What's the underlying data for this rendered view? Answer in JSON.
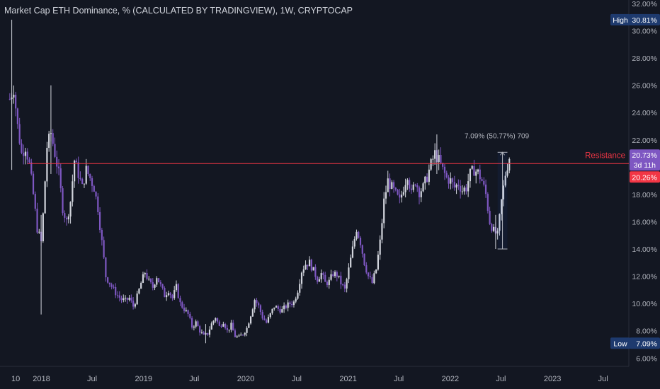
{
  "chart_data": {
    "type": "candlestick",
    "title": "Market Cap ETH Dominance, % (CALCULATED BY TRADINGVIEW), 1W, CRYPTOCAP",
    "y_unit": "%",
    "ylim": [
      5.6,
      32.1
    ],
    "y_ticks": [
      "32.00%",
      "30.00%",
      "28.00%",
      "26.00%",
      "24.00%",
      "22.00%",
      "20.00%",
      "18.00%",
      "16.00%",
      "14.00%",
      "12.00%",
      "10.00%",
      "8.00%",
      "6.00%"
    ],
    "y_tick_values": [
      32,
      30,
      28,
      26,
      24,
      22,
      20,
      18,
      16,
      14,
      12,
      10,
      8,
      6
    ],
    "x_ticks": [
      {
        "label": "10",
        "date": "2017-10-01"
      },
      {
        "label": "2018",
        "date": "2018-01-01"
      },
      {
        "label": "Jul",
        "date": "2018-07-01"
      },
      {
        "label": "2019",
        "date": "2019-01-01"
      },
      {
        "label": "Jul",
        "date": "2019-07-01"
      },
      {
        "label": "2020",
        "date": "2020-01-01"
      },
      {
        "label": "Jul",
        "date": "2020-07-01"
      },
      {
        "label": "2021",
        "date": "2021-01-01"
      },
      {
        "label": "Jul",
        "date": "2021-07-01"
      },
      {
        "label": "2022",
        "date": "2022-01-01"
      },
      {
        "label": "Jul",
        "date": "2022-07-01"
      },
      {
        "label": "2023",
        "date": "2023-01-01"
      },
      {
        "label": "Jul",
        "date": "2023-07-01"
      }
    ],
    "x_range": [
      "2017-08-06",
      "2023-10-01"
    ],
    "path": [
      [
        "2017-09-10",
        25.0
      ],
      [
        "2017-09-24",
        25.8
      ],
      [
        "2017-10-08",
        23.0
      ],
      [
        "2017-10-22",
        21.0
      ],
      [
        "2017-11-05",
        21.5
      ],
      [
        "2017-11-19",
        20.2
      ],
      [
        "2017-12-03",
        18.0
      ],
      [
        "2017-12-17",
        15.5
      ],
      [
        "2017-12-31",
        14.5
      ],
      [
        "2018-01-07",
        16.5
      ],
      [
        "2018-01-21",
        21.5
      ],
      [
        "2018-02-04",
        22.5
      ],
      [
        "2018-02-18",
        21.0
      ],
      [
        "2018-03-04",
        19.5
      ],
      [
        "2018-03-18",
        17.0
      ],
      [
        "2018-04-01",
        16.0
      ],
      [
        "2018-04-15",
        17.5
      ],
      [
        "2018-04-29",
        20.5
      ],
      [
        "2018-05-13",
        19.5
      ],
      [
        "2018-05-27",
        18.5
      ],
      [
        "2018-06-10",
        19.8
      ],
      [
        "2018-06-24",
        19.2
      ],
      [
        "2018-07-08",
        18.5
      ],
      [
        "2018-07-22",
        17.0
      ],
      [
        "2018-08-05",
        14.5
      ],
      [
        "2018-08-19",
        12.0
      ],
      [
        "2018-09-02",
        11.5
      ],
      [
        "2018-09-16",
        11.0
      ],
      [
        "2018-09-30",
        10.6
      ],
      [
        "2018-10-14",
        10.3
      ],
      [
        "2018-10-28",
        10.2
      ],
      [
        "2018-11-11",
        10.4
      ],
      [
        "2018-11-25",
        9.8
      ],
      [
        "2018-12-09",
        10.5
      ],
      [
        "2018-12-23",
        11.5
      ],
      [
        "2019-01-06",
        12.3
      ],
      [
        "2019-01-20",
        11.6
      ],
      [
        "2019-02-03",
        11.2
      ],
      [
        "2019-02-17",
        12.0
      ],
      [
        "2019-03-03",
        11.3
      ],
      [
        "2019-03-17",
        10.6
      ],
      [
        "2019-03-31",
        11.0
      ],
      [
        "2019-04-14",
        10.4
      ],
      [
        "2019-04-28",
        11.2
      ],
      [
        "2019-05-12",
        10.0
      ],
      [
        "2019-05-26",
        9.6
      ],
      [
        "2019-06-09",
        9.2
      ],
      [
        "2019-06-23",
        8.3
      ],
      [
        "2019-07-07",
        8.6
      ],
      [
        "2019-07-21",
        8.0
      ],
      [
        "2019-08-04",
        7.6
      ],
      [
        "2019-08-18",
        7.8
      ],
      [
        "2019-09-01",
        8.5
      ],
      [
        "2019-09-15",
        9.0
      ],
      [
        "2019-09-29",
        8.3
      ],
      [
        "2019-10-13",
        8.7
      ],
      [
        "2019-10-27",
        8.0
      ],
      [
        "2019-11-10",
        8.4
      ],
      [
        "2019-11-24",
        7.6
      ],
      [
        "2019-12-08",
        7.5
      ],
      [
        "2019-12-22",
        7.8
      ],
      [
        "2020-01-05",
        8.2
      ],
      [
        "2020-01-19",
        9.2
      ],
      [
        "2020-02-02",
        10.3
      ],
      [
        "2020-02-16",
        9.8
      ],
      [
        "2020-03-01",
        9.0
      ],
      [
        "2020-03-15",
        8.6
      ],
      [
        "2020-03-29",
        9.2
      ],
      [
        "2020-04-12",
        9.8
      ],
      [
        "2020-04-26",
        9.6
      ],
      [
        "2020-05-10",
        9.5
      ],
      [
        "2020-05-24",
        9.8
      ],
      [
        "2020-06-07",
        10.0
      ],
      [
        "2020-06-21",
        10.1
      ],
      [
        "2020-07-05",
        11.0
      ],
      [
        "2020-07-19",
        12.4
      ],
      [
        "2020-08-02",
        12.9
      ],
      [
        "2020-08-16",
        13.0
      ],
      [
        "2020-08-30",
        12.4
      ],
      [
        "2020-09-13",
        11.8
      ],
      [
        "2020-09-27",
        12.2
      ],
      [
        "2020-10-11",
        11.5
      ],
      [
        "2020-10-25",
        11.6
      ],
      [
        "2020-11-08",
        12.2
      ],
      [
        "2020-11-22",
        12.1
      ],
      [
        "2020-12-06",
        11.5
      ],
      [
        "2020-12-20",
        11.0
      ],
      [
        "2021-01-03",
        12.5
      ],
      [
        "2021-01-17",
        14.0
      ],
      [
        "2021-01-31",
        15.5
      ],
      [
        "2021-02-14",
        14.5
      ],
      [
        "2021-02-28",
        13.0
      ],
      [
        "2021-03-14",
        12.0
      ],
      [
        "2021-03-28",
        11.5
      ],
      [
        "2021-04-11",
        12.5
      ],
      [
        "2021-04-25",
        14.5
      ],
      [
        "2021-05-09",
        17.5
      ],
      [
        "2021-05-23",
        19.0
      ],
      [
        "2021-06-06",
        18.5
      ],
      [
        "2021-06-20",
        18.0
      ],
      [
        "2021-07-04",
        17.5
      ],
      [
        "2021-07-18",
        18.5
      ],
      [
        "2021-08-01",
        19.5
      ],
      [
        "2021-08-15",
        18.0
      ],
      [
        "2021-08-29",
        19.0
      ],
      [
        "2021-09-12",
        18.2
      ],
      [
        "2021-09-26",
        18.5
      ],
      [
        "2021-10-10",
        19.3
      ],
      [
        "2021-10-24",
        20.2
      ],
      [
        "2021-11-07",
        21.0
      ],
      [
        "2021-11-21",
        20.5
      ],
      [
        "2021-12-05",
        19.8
      ],
      [
        "2021-12-19",
        19.2
      ],
      [
        "2022-01-02",
        19.0
      ],
      [
        "2022-01-16",
        18.5
      ],
      [
        "2022-01-30",
        18.8
      ],
      [
        "2022-02-13",
        18.3
      ],
      [
        "2022-02-27",
        18.5
      ],
      [
        "2022-03-13",
        19.5
      ],
      [
        "2022-03-27",
        19.8
      ],
      [
        "2022-04-10",
        19.6
      ],
      [
        "2022-04-24",
        19.0
      ],
      [
        "2022-05-08",
        18.0
      ],
      [
        "2022-05-22",
        16.0
      ],
      [
        "2022-06-05",
        15.3
      ],
      [
        "2022-06-19",
        15.0
      ],
      [
        "2022-07-03",
        17.5
      ],
      [
        "2022-07-17",
        19.5
      ],
      [
        "2022-07-31",
        20.73
      ]
    ],
    "wicks": [
      [
        "2017-09-17",
        19.8,
        30.81
      ],
      [
        "2017-12-31",
        9.2,
        16.5
      ],
      [
        "2018-02-04",
        19.5,
        26.0
      ],
      [
        "2019-08-11",
        7.09,
        8.5
      ],
      [
        "2021-11-14",
        19.5,
        22.4
      ],
      [
        "2022-06-12",
        14.0,
        16.5
      ]
    ],
    "resistance": {
      "value": 20.26,
      "label": "Resistance",
      "start": "2017-11-12"
    },
    "price_tags": [
      {
        "label": "High",
        "value_text": "30.81%",
        "value": 30.81
      },
      {
        "label": "Low",
        "value_text": "7.09%",
        "value": 7.09
      }
    ],
    "last_price": {
      "value": 20.73,
      "value_text": "20.73%",
      "countdown": "3d 11h"
    },
    "resistance_tag": {
      "value": 20.26,
      "value_text": "20.26%"
    },
    "measure": {
      "text": "7.09% (50.77%) 709",
      "from_date": "2022-06-19",
      "to_date": "2022-07-24",
      "from_value": 14.0,
      "to_value": 21.09
    }
  }
}
